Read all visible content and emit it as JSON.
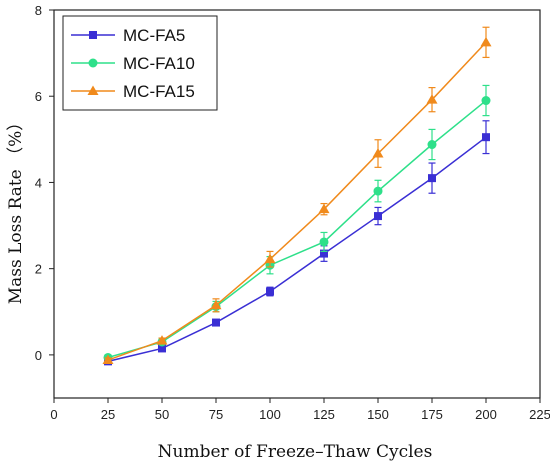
{
  "chart_data": {
    "type": "line",
    "xlabel": "Number of Freeze–Thaw Cycles",
    "ylabel": "Mass Loss Rate （%）",
    "xlim": [
      0,
      225
    ],
    "ylim": [
      -1,
      8
    ],
    "xticks": [
      0,
      25,
      50,
      75,
      100,
      125,
      150,
      175,
      200,
      225
    ],
    "yticks": [
      0,
      2,
      4,
      6,
      8
    ],
    "grid": false,
    "legend_position": "top-left",
    "x": [
      25,
      50,
      75,
      100,
      125,
      150,
      175,
      200
    ],
    "series": [
      {
        "name": "MC-FA5",
        "color": "#3a2fd4",
        "marker": "square",
        "values": [
          -0.15,
          0.15,
          0.75,
          1.47,
          2.35,
          3.22,
          4.1,
          5.05
        ],
        "errors": [
          0.06,
          0.06,
          0.06,
          0.1,
          0.18,
          0.2,
          0.35,
          0.38
        ]
      },
      {
        "name": "MC-FA10",
        "color": "#2ee08a",
        "marker": "circle",
        "values": [
          -0.06,
          0.3,
          1.12,
          2.08,
          2.62,
          3.8,
          4.88,
          5.9
        ],
        "errors": [
          0.05,
          0.06,
          0.12,
          0.2,
          0.22,
          0.25,
          0.35,
          0.35
        ]
      },
      {
        "name": "MC-FA15",
        "color": "#f08a1c",
        "marker": "triangle",
        "values": [
          -0.12,
          0.33,
          1.15,
          2.22,
          3.38,
          4.67,
          5.92,
          7.25
        ],
        "errors": [
          0.05,
          0.06,
          0.15,
          0.18,
          0.13,
          0.32,
          0.28,
          0.35
        ]
      }
    ]
  }
}
